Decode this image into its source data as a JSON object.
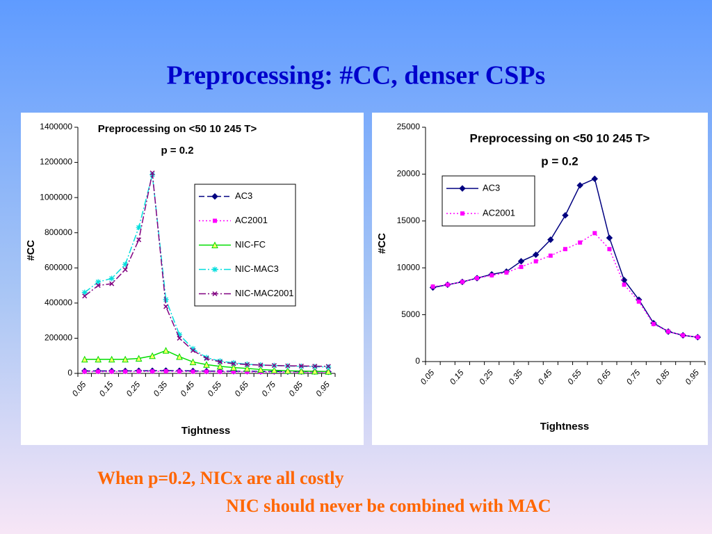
{
  "header": {
    "title": "Preprocessing: #CC, denser CSPs"
  },
  "chart_data": [
    {
      "type": "line",
      "title": "Preprocessing on <50 10 245 T>",
      "subtitle": "p = 0.2",
      "x_label": "Tightness",
      "y_label": "#CC",
      "categories": [
        "0.05",
        null,
        "0.15",
        null,
        "0.25",
        null,
        "0.35",
        null,
        "0.45",
        null,
        "0.55",
        null,
        "0.65",
        null,
        "0.75",
        null,
        "0.85",
        null,
        "0.95"
      ],
      "ylim": [
        0,
        1400000
      ],
      "yticks": [
        0,
        200000,
        400000,
        600000,
        800000,
        1000000,
        1200000,
        1400000
      ],
      "series": [
        {
          "name": "AC3",
          "color": "#000080",
          "marker": "diamond",
          "dash": "8,4",
          "values": [
            14000,
            14000,
            14000,
            14000,
            15000,
            15000,
            16000,
            15000,
            14000,
            13000,
            13000,
            12000,
            12000,
            11000,
            11000,
            10000,
            10000,
            10000,
            9000
          ]
        },
        {
          "name": "AC2001",
          "color": "#ff00ff",
          "marker": "square",
          "dash": "2,3",
          "values": [
            10000,
            10000,
            10000,
            10000,
            11000,
            11000,
            12000,
            11000,
            10000,
            10000,
            9000,
            9000,
            9000,
            8000,
            8000,
            8000,
            7000,
            7000,
            7000
          ]
        },
        {
          "name": "NIC-FC",
          "color": "#00dd00",
          "marker": "triangle",
          "dash": "",
          "values": [
            80000,
            80000,
            80000,
            80000,
            85000,
            100000,
            130000,
            95000,
            65000,
            50000,
            40000,
            33000,
            28000,
            22000,
            18000,
            15000,
            13000,
            12000,
            11000
          ]
        },
        {
          "name": "NIC-MAC3",
          "color": "#00dddd",
          "marker": "asterisk",
          "dash": "10,3,2,3",
          "values": [
            460000,
            520000,
            540000,
            620000,
            830000,
            1130000,
            420000,
            220000,
            140000,
            90000,
            70000,
            60000,
            52000,
            48000,
            45000,
            42000,
            40000,
            38000,
            36000
          ]
        },
        {
          "name": "NIC-MAC2001",
          "color": "#800080",
          "marker": "x",
          "dash": "10,3,2,3",
          "values": [
            440000,
            500000,
            510000,
            590000,
            760000,
            1140000,
            380000,
            200000,
            130000,
            85000,
            65000,
            55000,
            50000,
            47000,
            45000,
            43000,
            42000,
            41000,
            40000
          ]
        }
      ]
    },
    {
      "type": "line",
      "title": "Preprocessing on <50 10 245 T>",
      "subtitle": "p = 0.2",
      "x_label": "Tightness",
      "y_label": "#CC",
      "categories": [
        "0.05",
        null,
        "0.15",
        null,
        "0.25",
        null,
        "0.35",
        null,
        "0.45",
        null,
        "0.55",
        null,
        "0.65",
        null,
        "0.75",
        null,
        "0.85",
        null,
        "0.95"
      ],
      "ylim": [
        0,
        25000
      ],
      "yticks": [
        0,
        5000,
        10000,
        15000,
        20000,
        25000
      ],
      "series": [
        {
          "name": "AC3",
          "color": "#000080",
          "marker": "diamond",
          "dash": "",
          "values": [
            7900,
            8200,
            8500,
            8900,
            9300,
            9600,
            10700,
            11400,
            13000,
            15600,
            18800,
            19500,
            13200,
            8700,
            6600,
            4100,
            3200,
            2800,
            2600
          ]
        },
        {
          "name": "AC2001",
          "color": "#ff00ff",
          "marker": "square",
          "dash": "2,3",
          "values": [
            8000,
            8200,
            8500,
            8900,
            9200,
            9500,
            10100,
            10700,
            11300,
            12000,
            12700,
            13700,
            12000,
            8200,
            6400,
            4000,
            3200,
            2800,
            2600
          ]
        }
      ]
    }
  ],
  "footer": {
    "line1": "When p=0.2, NICx are all costly",
    "line2": "NIC should never be combined with MAC"
  }
}
